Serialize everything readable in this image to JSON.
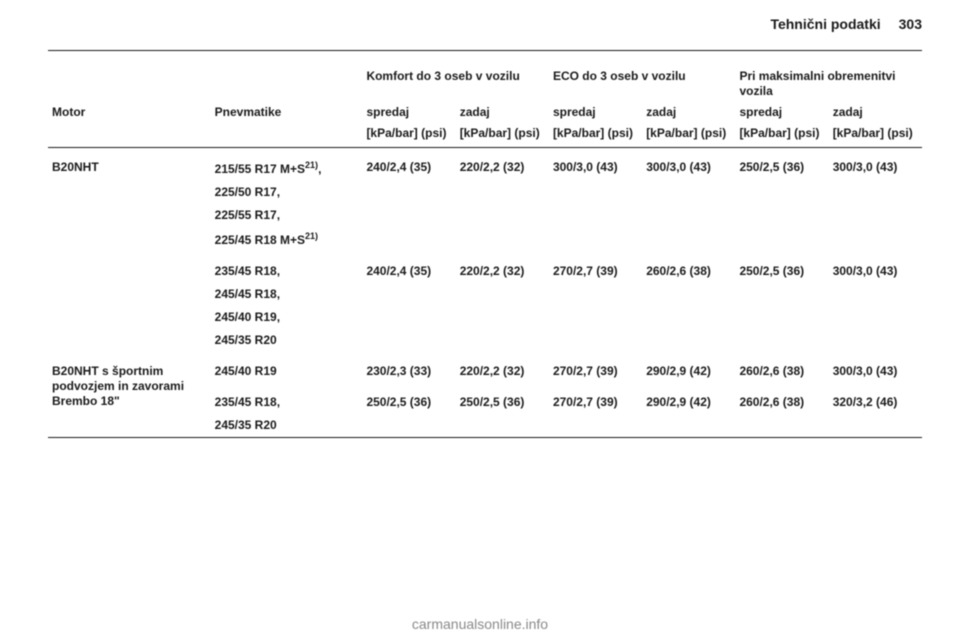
{
  "header": {
    "section_title": "Tehnični podatki",
    "page_number": "303"
  },
  "column_groups": {
    "comfort": "Komfort do 3 oseb v vozilu",
    "eco": "ECO do 3 oseb v vozilu",
    "max": "Pri maksimalni obremenitvi vozila"
  },
  "col_labels": {
    "motor": "Motor",
    "tyres": "Pnevmatike",
    "front": "spredaj",
    "rear": "zadaj"
  },
  "units": "[kPa/bar] (psi)",
  "rows": [
    {
      "motor": "B20NHT",
      "tyre_groups": [
        {
          "tyres": [
            "215/55 R17 M+S<sup>21)</sup>,",
            "225/50 R17,",
            "225/55 R17,",
            "225/45 R18 M+S<sup>21)</sup>"
          ],
          "values": {
            "comfort_front": "240/2,4 (35)",
            "comfort_rear": "220/2,2 (32)",
            "eco_front": "300/3,0 (43)",
            "eco_rear": "300/3,0 (43)",
            "max_front": "250/2,5 (36)",
            "max_rear": "300/3,0 (43)"
          }
        },
        {
          "tyres": [
            "235/45 R18,",
            "245/45 R18,",
            "245/40 R19,",
            "245/35 R20"
          ],
          "values": {
            "comfort_front": "240/2,4 (35)",
            "comfort_rear": "220/2,2 (32)",
            "eco_front": "270/2,7 (39)",
            "eco_rear": "260/2,6 (38)",
            "max_front": "250/2,5 (36)",
            "max_rear": "300/3,0 (43)"
          }
        }
      ]
    },
    {
      "motor": "B20NHT s športnim podvozjem in zavorami Brembo 18\"",
      "tyre_groups": [
        {
          "tyres": [
            "245/40 R19"
          ],
          "values": {
            "comfort_front": "230/2,3 (33)",
            "comfort_rear": "220/2,2 (32)",
            "eco_front": "270/2,7 (39)",
            "eco_rear": "290/2,9 (42)",
            "max_front": "260/2,6 (38)",
            "max_rear": "300/3,0 (43)"
          }
        },
        {
          "tyres": [
            "235/45 R18,",
            "245/35 R20"
          ],
          "values": {
            "comfort_front": "250/2,5 (36)",
            "comfort_rear": "250/2,5 (36)",
            "eco_front": "270/2,7 (39)",
            "eco_rear": "290/2,9 (42)",
            "max_front": "260/2,6 (38)",
            "max_rear": "320/3,2 (46)"
          }
        }
      ]
    }
  ],
  "footer_url": "carmanualsonline.info"
}
